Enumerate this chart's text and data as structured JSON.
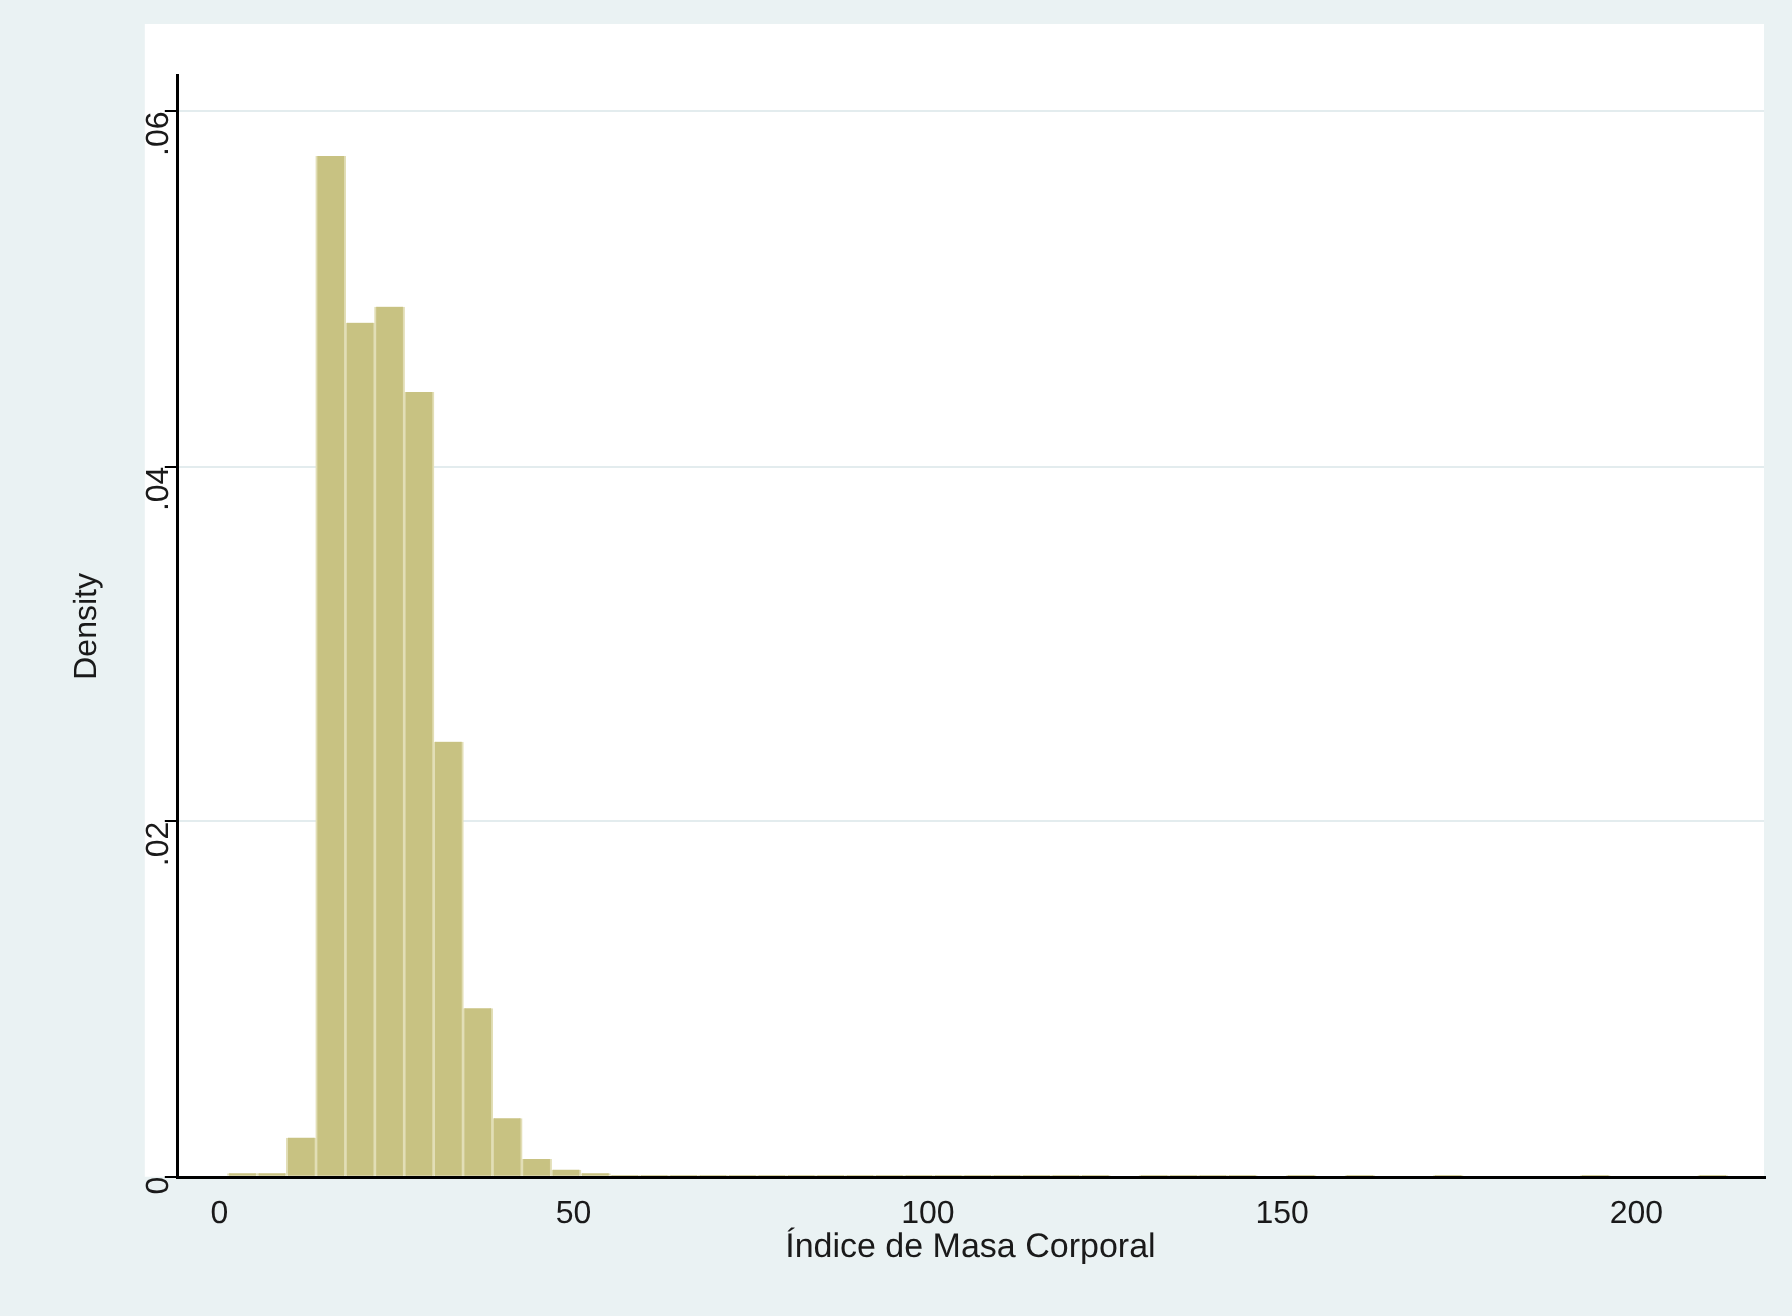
{
  "chart_data": {
    "type": "histogram",
    "xlabel": "Índice de Masa Corporal",
    "ylabel": "Density",
    "color": "#c8c282",
    "bins": [
      1.2,
      5.35,
      9.5,
      13.65,
      17.8,
      21.95,
      26.1,
      30.25,
      34.4,
      38.55,
      42.7,
      46.85,
      51,
      55.15,
      59.3,
      63.45,
      67.6,
      71.75,
      75.9,
      80.05,
      84.2,
      88.35,
      92.5,
      96.65,
      100.8,
      104.95,
      109.1,
      113.25,
      117.4,
      121.55,
      125.7,
      129.85,
      134,
      138.15,
      142.3,
      146.45,
      150.6,
      154.75,
      158.9,
      163.05,
      167.2,
      171.35,
      175.5,
      179.65,
      183.8,
      187.95,
      192.1,
      196.25,
      200.4,
      204.55,
      208.7,
      212.85
    ],
    "values": [
      0.0002,
      0.0002,
      0.0022,
      0.0575,
      0.0481,
      0.049,
      0.0442,
      0.0245,
      0.0095,
      0.0033,
      0.001,
      0.0004,
      0.0002,
      0.0001,
      0.0001,
      0.0001,
      0.0001,
      0.0001,
      0.0001,
      0.0001,
      0.0001,
      0.0001,
      0.0001,
      0.0001,
      0.0001,
      0.0001,
      0.0001,
      0.0001,
      0.0001,
      0.0001,
      0,
      0.0001,
      0.0001,
      0.0001,
      0.0001,
      0,
      0.0001,
      0,
      0.0001,
      0,
      0,
      0.0001,
      0,
      0,
      0,
      0,
      0.0001,
      0,
      0,
      0,
      0.0001
    ],
    "xlim": [
      -6,
      218
    ],
    "ylim": [
      0,
      0.062
    ],
    "xticks": [
      0,
      50,
      100,
      150,
      200
    ],
    "yticks": [
      {
        "value": 0,
        "label": "0"
      },
      {
        "value": 0.02,
        "label": ".02"
      },
      {
        "value": 0.04,
        "label": ".04"
      },
      {
        "value": 0.06,
        "label": ".06"
      }
    ],
    "grid": "y",
    "legend": false
  }
}
